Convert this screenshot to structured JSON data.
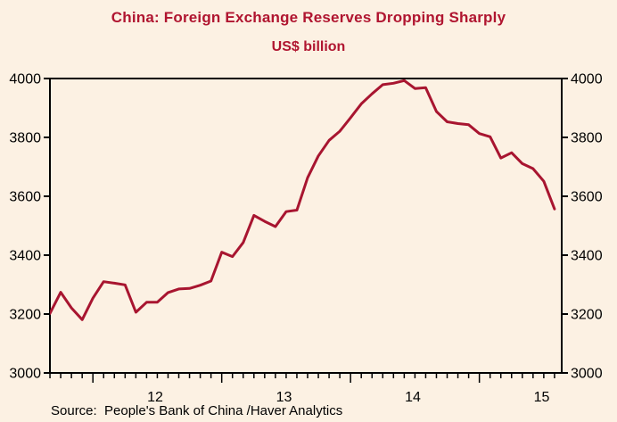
{
  "page": {
    "background": "#FCF1E3"
  },
  "chart_data": {
    "type": "line",
    "title": "China: Foreign Exchange Reserves Dropping Sharply",
    "subtitle": "US$ billion",
    "source": "Source:  People's Bank of China /Haver Analytics",
    "title_color": "#B01530",
    "line_color": "#A81530",
    "axis_color": "#000000",
    "tick_label_color": "#000000",
    "grid": false,
    "legend_position": "none",
    "ylim": [
      3000,
      4000
    ],
    "y_ticks": [
      3000,
      3200,
      3400,
      3600,
      3800,
      4000
    ],
    "x_year_labels": [
      "12",
      "13",
      "14",
      "15"
    ],
    "series_name": "China foreign exchange reserves (US$ billion, monthly)",
    "months": [
      "2011-08",
      "2011-09",
      "2011-10",
      "2011-11",
      "2011-12",
      "2012-01",
      "2012-02",
      "2012-03",
      "2012-04",
      "2012-05",
      "2012-06",
      "2012-07",
      "2012-08",
      "2012-09",
      "2012-10",
      "2012-11",
      "2012-12",
      "2013-01",
      "2013-02",
      "2013-03",
      "2013-04",
      "2013-05",
      "2013-06",
      "2013-07",
      "2013-08",
      "2013-09",
      "2013-10",
      "2013-11",
      "2013-12",
      "2014-01",
      "2014-02",
      "2014-03",
      "2014-04",
      "2014-05",
      "2014-06",
      "2014-07",
      "2014-08",
      "2014-09",
      "2014-10",
      "2014-11",
      "2014-12",
      "2015-01",
      "2015-02",
      "2015-03",
      "2015-04",
      "2015-05",
      "2015-06",
      "2015-07",
      "2015-08"
    ],
    "values": [
      3262,
      3202,
      3274,
      3221,
      3181,
      3254,
      3310,
      3305,
      3299,
      3206,
      3240,
      3240,
      3273,
      3285,
      3287,
      3298,
      3312,
      3410,
      3395,
      3443,
      3535,
      3515,
      3497,
      3548,
      3553,
      3663,
      3737,
      3790,
      3821,
      3867,
      3914,
      3948,
      3979,
      3984,
      3993,
      3966,
      3969,
      3888,
      3853,
      3847,
      3843,
      3813,
      3802,
      3730,
      3748,
      3711,
      3694,
      3651,
      3557
    ]
  }
}
